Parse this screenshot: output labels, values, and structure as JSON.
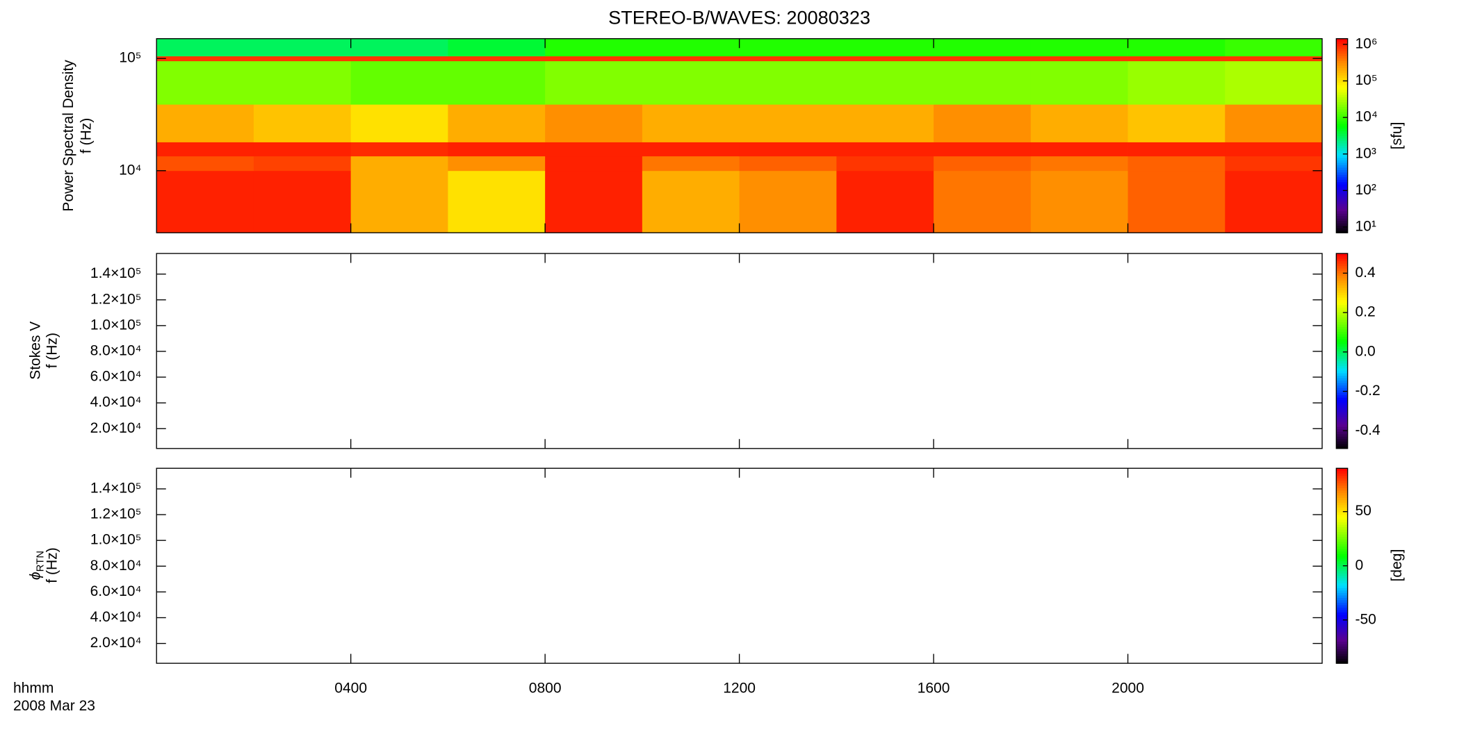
{
  "title": "STEREO-B/WAVES: 20080323",
  "x_axis": {
    "label": "hhmm",
    "date": "2008 Mar 23",
    "xlim": [
      0,
      24
    ],
    "xticks": [
      {
        "value": 4,
        "label": "0400"
      },
      {
        "value": 8,
        "label": "0800"
      },
      {
        "value": 12,
        "label": "1200"
      },
      {
        "value": 16,
        "label": "1600"
      },
      {
        "value": 20,
        "label": "2000"
      }
    ]
  },
  "chart_data": [
    {
      "type": "heatmap",
      "ylabel": {
        "name": "Power Spectral Density",
        "unit": "f (Hz)"
      },
      "ylog": true,
      "ylim": [
        2800,
        150000
      ],
      "yticks": [
        {
          "value": 10000,
          "label": "10⁴"
        },
        {
          "value": 100000,
          "label": "10⁵"
        }
      ],
      "x_edges": [
        0,
        2,
        4,
        6,
        8,
        10,
        12,
        14,
        16,
        18,
        20,
        22,
        24
      ],
      "y_edges": [
        2800,
        10000,
        13500,
        18000,
        39000,
        95000,
        105000,
        150000
      ],
      "z": [
        [
          1000000,
          1000000,
          200000,
          100000,
          1000000,
          200000,
          300000,
          1000000,
          400000,
          300000,
          500000,
          1000000
        ],
        [
          600000,
          700000,
          200000,
          300000,
          1000000,
          400000,
          500000,
          800000,
          500000,
          400000,
          500000,
          800000
        ],
        [
          1000000,
          1000000,
          900000,
          1000000,
          1000000,
          1000000,
          1000000,
          1000000,
          1000000,
          1000000,
          1000000,
          1000000
        ],
        [
          200000,
          150000,
          100000,
          200000,
          300000,
          200000,
          200000,
          200000,
          300000,
          200000,
          150000,
          300000
        ],
        [
          20000,
          20000,
          15000,
          15000,
          20000,
          20000,
          20000,
          20000,
          20000,
          20000,
          25000,
          30000
        ],
        [
          800000,
          800000,
          800000,
          800000,
          800000,
          800000,
          800000,
          800000,
          800000,
          800000,
          800000,
          800000
        ],
        [
          3000,
          3000,
          3000,
          4000,
          8000,
          8000,
          8000,
          8000,
          8000,
          8000,
          8000,
          10000
        ]
      ],
      "colorbar": {
        "label": "[sfu]",
        "log": true,
        "zlim": [
          7,
          1430000
        ],
        "zticks": [
          {
            "value": 10,
            "label": "10¹"
          },
          {
            "value": 100,
            "label": "10²"
          },
          {
            "value": 1000,
            "label": "10³"
          },
          {
            "value": 10000,
            "label": "10⁴"
          },
          {
            "value": 100000,
            "label": "10⁵"
          },
          {
            "value": 1000000,
            "label": "10⁶"
          }
        ]
      }
    },
    {
      "type": "heatmap",
      "ylabel": {
        "name": "Stokes V",
        "unit": "f (Hz)"
      },
      "ylog": false,
      "ylim": [
        4600,
        156000
      ],
      "yticks": [
        {
          "value": 20000,
          "label": "2.0×10⁴"
        },
        {
          "value": 40000,
          "label": "4.0×10⁴"
        },
        {
          "value": 60000,
          "label": "6.0×10⁴"
        },
        {
          "value": 80000,
          "label": "8.0×10⁴"
        },
        {
          "value": 100000,
          "label": "1.0×10⁵"
        },
        {
          "value": 120000,
          "label": "1.2×10⁵"
        },
        {
          "value": 140000,
          "label": "1.4×10⁵"
        }
      ],
      "colorbar": {
        "log": false,
        "zlim": [
          -0.49,
          0.5
        ],
        "zticks": [
          -0.4,
          -0.2,
          {
            "value": 0,
            "label": "0.0"
          },
          0.2,
          0.4
        ]
      }
    },
    {
      "type": "heatmap",
      "ylabel": {
        "name": "ϕ",
        "sub": "RTN",
        "unit": "f (Hz)"
      },
      "ylog": false,
      "ylim": [
        4600,
        156000
      ],
      "yticks": [
        {
          "value": 20000,
          "label": "2.0×10⁴"
        },
        {
          "value": 40000,
          "label": "4.0×10⁴"
        },
        {
          "value": 60000,
          "label": "6.0×10⁴"
        },
        {
          "value": 80000,
          "label": "8.0×10⁴"
        },
        {
          "value": 100000,
          "label": "1.0×10⁵"
        },
        {
          "value": 120000,
          "label": "1.2×10⁵"
        },
        {
          "value": 140000,
          "label": "1.4×10⁵"
        }
      ],
      "colorbar": {
        "label": "[deg]",
        "log": false,
        "zlim": [
          -90,
          90
        ],
        "zticks": [
          -50,
          0,
          50
        ]
      }
    }
  ]
}
